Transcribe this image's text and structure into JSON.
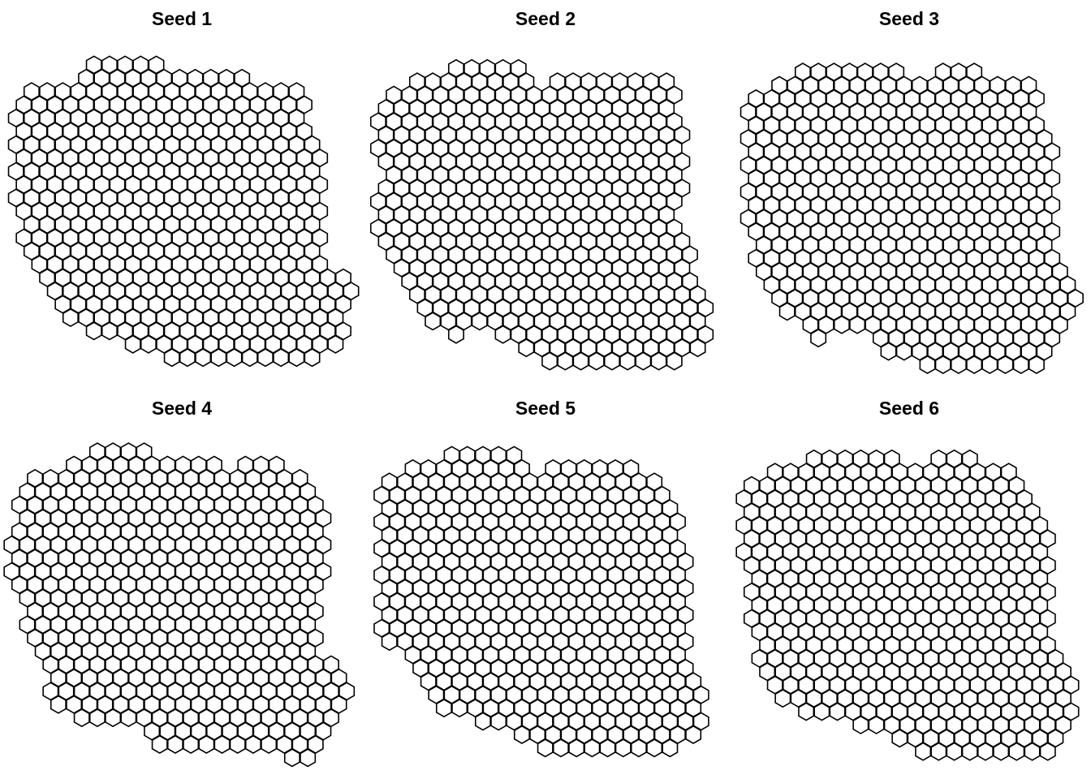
{
  "figure": {
    "panels": [
      {
        "title": "Seed 1"
      },
      {
        "title": "Seed 2"
      },
      {
        "title": "Seed 3"
      },
      {
        "title": "Seed 4"
      },
      {
        "title": "Seed 5"
      },
      {
        "title": "Seed 6"
      }
    ],
    "colors": {
      "stroke": "#000000",
      "fill": "#ffffff",
      "background": "#ffffff"
    }
  }
}
